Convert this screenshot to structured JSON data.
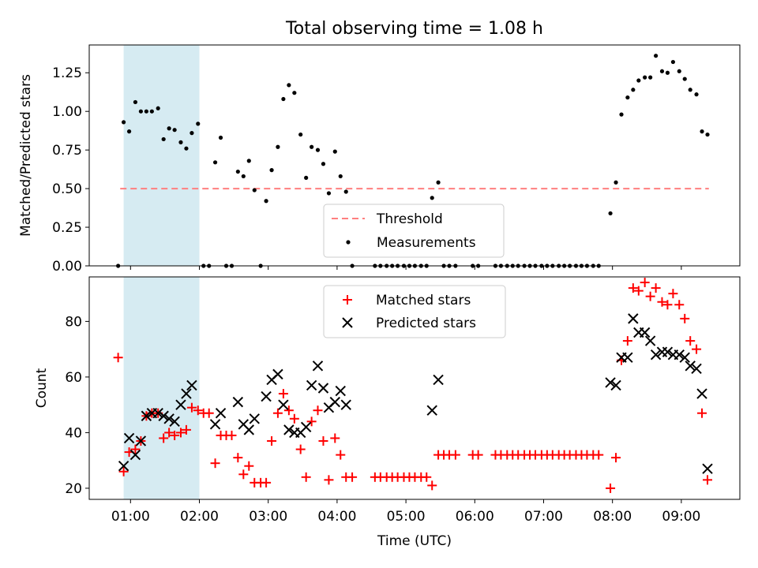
{
  "figure": {
    "title": "Total observing time = 1.08 h",
    "xlabel": "Time (UTC)",
    "x_tick_labels": [
      "01:00",
      "02:00",
      "03:00",
      "04:00",
      "05:00",
      "06:00",
      "07:00",
      "08:00",
      "09:00"
    ]
  },
  "chart_data": [
    {
      "type": "scatter",
      "title": "Total observing time = 1.08 h",
      "xlabel": "",
      "ylabel": "Matched/Predicted stars",
      "x_unit": "hours UTC",
      "xlim": [
        0.4,
        9.85
      ],
      "ylim": [
        0,
        1.43
      ],
      "y_ticks": [
        0.0,
        0.25,
        0.5,
        0.75,
        1.0,
        1.25
      ],
      "y_tick_labels": [
        "0.00",
        "0.25",
        "0.50",
        "0.75",
        "1.00",
        "1.25"
      ],
      "grid": false,
      "legend": {
        "placement": "lower-center",
        "entries": [
          "Threshold",
          "Measurements"
        ]
      },
      "shaded_region": {
        "x": [
          0.9,
          2.0
        ],
        "color": "#add8e6"
      },
      "threshold": {
        "name": "Threshold",
        "y": 0.5,
        "x": [
          0.85,
          9.4
        ],
        "color": "#ff7f7f",
        "style": "dashed"
      },
      "series": [
        {
          "name": "Measurements",
          "color": "#000000",
          "x": [
            0.82,
            0.9,
            0.98,
            1.07,
            1.15,
            1.23,
            1.31,
            1.4,
            1.48,
            1.56,
            1.64,
            1.73,
            1.81,
            1.89,
            1.98,
            2.06,
            2.14,
            2.23,
            2.31,
            2.39,
            2.47,
            2.56,
            2.64,
            2.72,
            2.8,
            2.89,
            2.97,
            3.05,
            3.14,
            3.22,
            3.3,
            3.38,
            3.47,
            3.55,
            3.63,
            3.72,
            3.8,
            3.88,
            3.97,
            4.05,
            4.13,
            4.22,
            4.55,
            4.63,
            4.72,
            4.8,
            4.88,
            4.97,
            5.05,
            5.13,
            5.22,
            5.3,
            5.38,
            5.47,
            5.55,
            5.63,
            5.72,
            5.97,
            6.05,
            6.3,
            6.38,
            6.47,
            6.55,
            6.63,
            6.72,
            6.8,
            6.88,
            6.97,
            7.05,
            7.13,
            7.22,
            7.3,
            7.38,
            7.47,
            7.55,
            7.63,
            7.72,
            7.8,
            7.97,
            8.05,
            8.13,
            8.22,
            8.3,
            8.38,
            8.47,
            8.55,
            8.63,
            8.72,
            8.8,
            8.88,
            8.97,
            9.05,
            9.13,
            9.22,
            9.3,
            9.38
          ],
          "y": [
            0.0,
            0.93,
            0.87,
            1.06,
            1.0,
            1.0,
            1.0,
            1.02,
            0.82,
            0.89,
            0.88,
            0.8,
            0.76,
            0.86,
            0.92,
            0.0,
            0.0,
            0.67,
            0.83,
            0.0,
            0.0,
            0.61,
            0.58,
            0.68,
            0.49,
            0.0,
            0.42,
            0.62,
            0.77,
            1.08,
            1.17,
            1.12,
            0.85,
            0.57,
            0.77,
            0.75,
            0.66,
            0.47,
            0.74,
            0.58,
            0.48,
            0.0,
            0.0,
            0.0,
            0.0,
            0.0,
            0.0,
            0.0,
            0.0,
            0.0,
            0.0,
            0.0,
            0.44,
            0.54,
            0.0,
            0.0,
            0.0,
            0.0,
            0.0,
            0.0,
            0.0,
            0.0,
            0.0,
            0.0,
            0.0,
            0.0,
            0.0,
            0.0,
            0.0,
            0.0,
            0.0,
            0.0,
            0.0,
            0.0,
            0.0,
            0.0,
            0.0,
            0.0,
            0.34,
            0.54,
            0.98,
            1.09,
            1.14,
            1.2,
            1.22,
            1.22,
            1.36,
            1.26,
            1.25,
            1.32,
            1.26,
            1.21,
            1.14,
            1.11,
            0.87,
            0.85
          ]
        }
      ]
    },
    {
      "type": "scatter",
      "xlabel": "Time (UTC)",
      "ylabel": "Count",
      "x_unit": "hours UTC",
      "xlim": [
        0.4,
        9.85
      ],
      "ylim": [
        16,
        96
      ],
      "y_ticks": [
        20,
        40,
        60,
        80
      ],
      "y_tick_labels": [
        "20",
        "40",
        "60",
        "80"
      ],
      "x_ticks": [
        1,
        2,
        3,
        4,
        5,
        6,
        7,
        8,
        9
      ],
      "grid": false,
      "legend": {
        "placement": "upper-center",
        "entries": [
          "Matched stars",
          "Predicted stars"
        ]
      },
      "shaded_region": {
        "x": [
          0.9,
          2.0
        ],
        "color": "#add8e6"
      },
      "series": [
        {
          "name": "Matched stars",
          "marker": "plus",
          "color": "#ff0000",
          "x": [
            0.82,
            0.9,
            0.98,
            1.07,
            1.15,
            1.23,
            1.31,
            1.4,
            1.48,
            1.56,
            1.64,
            1.73,
            1.81,
            1.89,
            1.98,
            2.06,
            2.14,
            2.23,
            2.31,
            2.39,
            2.47,
            2.56,
            2.64,
            2.72,
            2.8,
            2.89,
            2.97,
            3.05,
            3.14,
            3.22,
            3.3,
            3.38,
            3.47,
            3.55,
            3.63,
            3.72,
            3.8,
            3.88,
            3.97,
            4.05,
            4.13,
            4.22,
            4.55,
            4.63,
            4.72,
            4.8,
            4.88,
            4.97,
            5.05,
            5.13,
            5.22,
            5.3,
            5.38,
            5.47,
            5.55,
            5.63,
            5.72,
            5.97,
            6.05,
            6.3,
            6.38,
            6.47,
            6.55,
            6.63,
            6.72,
            6.8,
            6.88,
            6.97,
            7.05,
            7.13,
            7.22,
            7.3,
            7.38,
            7.47,
            7.55,
            7.63,
            7.72,
            7.8,
            7.97,
            8.05,
            8.13,
            8.22,
            8.3,
            8.38,
            8.47,
            8.55,
            8.63,
            8.72,
            8.8,
            8.88,
            8.97,
            9.05,
            9.13,
            9.22,
            9.3,
            9.38
          ],
          "y": [
            67,
            26,
            33,
            34,
            37,
            46,
            47,
            47,
            38,
            40,
            39,
            40,
            41,
            49,
            48,
            47,
            47,
            29,
            39,
            39,
            39,
            31,
            25,
            28,
            22,
            22,
            22,
            37,
            47,
            54,
            48,
            45,
            34,
            24,
            44,
            48,
            37,
            23,
            38,
            32,
            24,
            24,
            24,
            24,
            24,
            24,
            24,
            24,
            24,
            24,
            24,
            24,
            21,
            32,
            32,
            32,
            32,
            32,
            32,
            32,
            32,
            32,
            32,
            32,
            32,
            32,
            32,
            32,
            32,
            32,
            32,
            32,
            32,
            32,
            32,
            32,
            32,
            32,
            20,
            31,
            66,
            73,
            92,
            91,
            94,
            89,
            92,
            87,
            86,
            90,
            86,
            81,
            73,
            70,
            47,
            23
          ]
        },
        {
          "name": "Predicted stars",
          "marker": "x",
          "color": "#000000",
          "x": [
            0.9,
            0.98,
            1.07,
            1.15,
            1.23,
            1.31,
            1.4,
            1.48,
            1.56,
            1.64,
            1.73,
            1.81,
            1.89,
            2.23,
            2.31,
            2.56,
            2.64,
            2.72,
            2.8,
            2.97,
            3.05,
            3.14,
            3.22,
            3.3,
            3.38,
            3.47,
            3.55,
            3.63,
            3.72,
            3.8,
            3.88,
            3.97,
            4.05,
            4.13,
            5.38,
            5.47,
            7.97,
            8.05,
            8.13,
            8.22,
            8.3,
            8.38,
            8.47,
            8.55,
            8.63,
            8.72,
            8.8,
            8.88,
            8.97,
            9.05,
            9.13,
            9.22,
            9.3,
            9.38
          ],
          "y": [
            28,
            38,
            32,
            37,
            46,
            47,
            47,
            46,
            45,
            44,
            50,
            54,
            57,
            43,
            47,
            51,
            43,
            41,
            45,
            53,
            59,
            61,
            50,
            41,
            40,
            40,
            42,
            57,
            64,
            56,
            49,
            51,
            55,
            50,
            48,
            59,
            58,
            57,
            67,
            67,
            81,
            76,
            76,
            73,
            68,
            69,
            69,
            68,
            68,
            67,
            64,
            63,
            54,
            27
          ]
        }
      ]
    }
  ]
}
